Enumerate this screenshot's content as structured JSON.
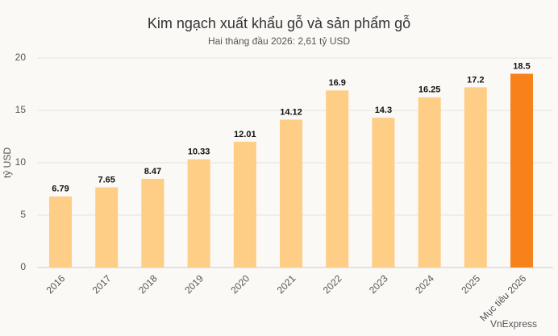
{
  "chart_data": {
    "type": "bar",
    "title": "Kim ngạch xuất khẩu gỗ và sản phẩm gỗ",
    "subtitle": "Hai tháng đầu 2026: 2,61 tỷ USD",
    "y_label": "tỷ USD",
    "source": "VnExpress",
    "categories": [
      "2016",
      "2017",
      "2018",
      "2019",
      "2020",
      "2021",
      "2022",
      "2023",
      "2024",
      "2025",
      "Mục tiêu 2026"
    ],
    "values": [
      6.79,
      7.65,
      8.47,
      10.33,
      12.01,
      14.12,
      16.9,
      14.3,
      16.25,
      17.2,
      18.5
    ],
    "colors": [
      "#fecd86",
      "#fecd86",
      "#fecd86",
      "#fecd86",
      "#fecd86",
      "#fecd86",
      "#fecd86",
      "#fecd86",
      "#fecd86",
      "#fecd86",
      "#f7821b"
    ],
    "ylim": [
      0,
      20
    ],
    "yticks": [
      0,
      5,
      10,
      15,
      20
    ],
    "grid": true
  }
}
